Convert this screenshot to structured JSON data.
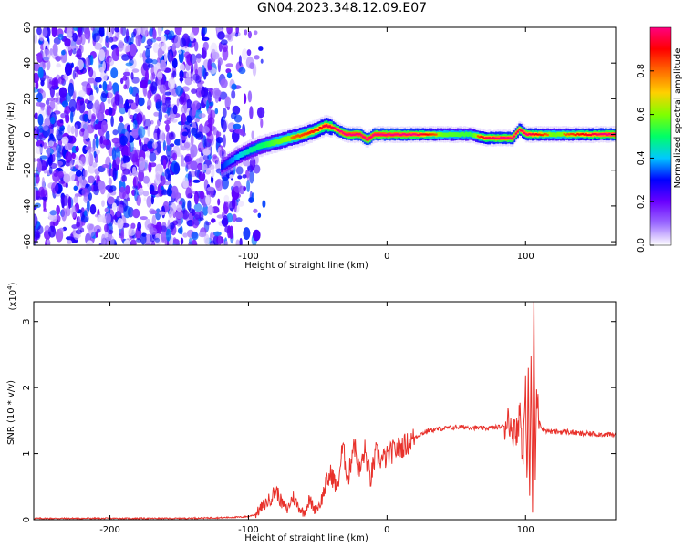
{
  "title": "GN04.2023.348.12.09.E07",
  "chart_data": [
    {
      "type": "heatmap",
      "title": "",
      "xlabel": "Height of straight line (km)",
      "ylabel": "Frequency (Hz)",
      "xlim": [
        -255,
        165
      ],
      "ylim": [
        -62,
        60
      ],
      "xticks": [
        -200,
        -100,
        0,
        100
      ],
      "yticks": [
        60,
        40,
        20,
        0,
        -20,
        -40,
        -60
      ],
      "colorbar": {
        "label": "Normalized spectral amplitude",
        "range": [
          0,
          1
        ],
        "ticks": [
          0.0,
          0.2,
          0.4,
          0.6,
          0.8
        ],
        "colors": [
          "#ffffff",
          "#9b6bff",
          "#6a00ff",
          "#0000ff",
          "#00c8ff",
          "#00ff66",
          "#80ff00",
          "#ffd000",
          "#ff6a00",
          "#ff0000",
          "#ff0080"
        ]
      },
      "noise_region_x": [
        -255,
        -105
      ],
      "signal_ridge": {
        "x": [
          -120,
          -110,
          -100,
          -90,
          -80,
          -70,
          -60,
          -50,
          -45,
          -40,
          -35,
          -30,
          -20,
          -15,
          -10,
          0,
          20,
          40,
          60,
          70,
          80,
          90,
          95,
          100,
          120,
          140,
          165
        ],
        "freq": [
          -18,
          -13,
          -9,
          -6,
          -4,
          -2,
          0,
          3,
          5,
          4,
          2,
          0,
          0,
          -3,
          0,
          0,
          0,
          0,
          0,
          -2,
          -2,
          -2,
          3,
          0,
          0,
          0,
          0
        ],
        "peak_amplitude": [
          0.35,
          0.45,
          0.55,
          0.6,
          0.7,
          0.75,
          0.8,
          0.85,
          0.9,
          0.9,
          0.95,
          1.0,
          1.0,
          1.0,
          1.0,
          1.0,
          0.95,
          0.7,
          0.65,
          0.9,
          0.95,
          0.95,
          0.9,
          0.95,
          0.7,
          0.85,
          1.0
        ]
      }
    },
    {
      "type": "line",
      "title": "",
      "xlabel": "Height of straight line (km)",
      "ylabel": "SNR (10 * v/v)",
      "ylabel_scale": "(x10",
      "ylabel_exponent": "4",
      "ylabel_scale_close": ")",
      "xlim": [
        -255,
        165
      ],
      "ylim": [
        0,
        3.3
      ],
      "xticks": [
        -200,
        -100,
        0,
        100
      ],
      "yticks": [
        0,
        1,
        2,
        3
      ],
      "series": [
        {
          "color": "#e8312b",
          "x": [
            -255,
            -200,
            -150,
            -120,
            -105,
            -100,
            -95,
            -90,
            -85,
            -80,
            -76,
            -72,
            -68,
            -64,
            -60,
            -56,
            -52,
            -48,
            -44,
            -40,
            -36,
            -32,
            -28,
            -24,
            -20,
            -16,
            -12,
            -8,
            -4,
            0,
            5,
            10,
            15,
            20,
            25,
            30,
            40,
            50,
            60,
            70,
            80,
            85,
            88,
            90,
            92,
            94,
            96,
            98,
            100,
            101,
            102,
            103,
            104,
            105,
            106,
            107,
            108,
            110,
            112,
            115,
            120,
            130,
            140,
            150,
            165
          ],
          "y": [
            0.02,
            0.02,
            0.02,
            0.03,
            0.04,
            0.05,
            0.08,
            0.2,
            0.3,
            0.45,
            0.25,
            0.15,
            0.35,
            0.2,
            0.1,
            0.3,
            0.15,
            0.25,
            0.55,
            0.7,
            0.45,
            1.1,
            0.6,
            1.2,
            0.7,
            1.05,
            0.6,
            1.0,
            0.9,
            0.95,
            1.05,
            1.1,
            1.15,
            1.25,
            1.3,
            1.35,
            1.38,
            1.4,
            1.4,
            1.38,
            1.4,
            1.42,
            1.6,
            1.2,
            1.5,
            1.3,
            1.7,
            0.9,
            2.0,
            0.4,
            2.5,
            0.15,
            2.6,
            0.05,
            3.3,
            0.6,
            1.9,
            1.5,
            1.38,
            1.35,
            1.33,
            1.33,
            1.3,
            1.3,
            1.28
          ]
        }
      ]
    }
  ]
}
